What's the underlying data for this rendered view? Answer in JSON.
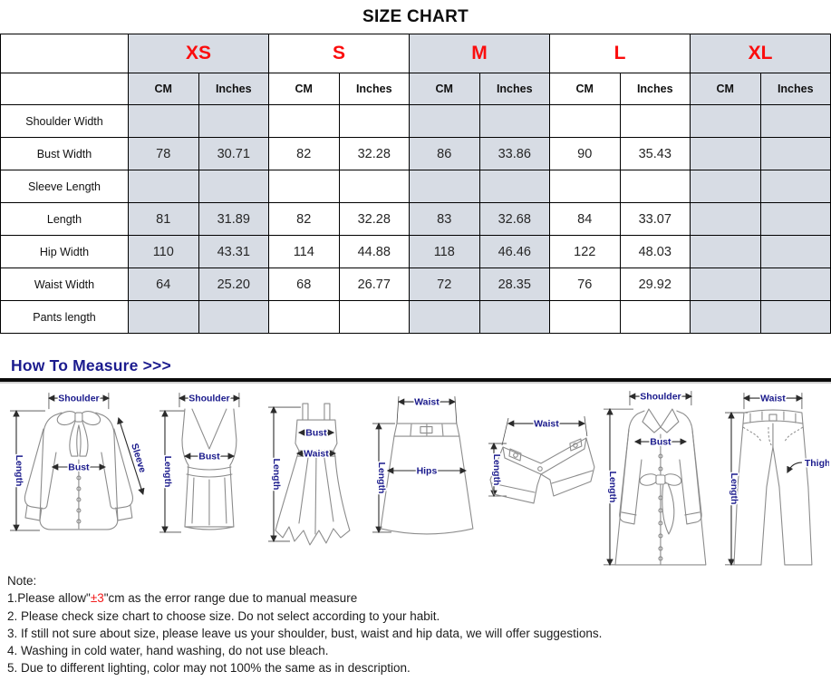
{
  "title": "SIZE CHART",
  "table": {
    "sizes": [
      "XS",
      "S",
      "M",
      "L",
      "XL"
    ],
    "unit_headers": [
      "CM",
      "Inches"
    ],
    "rows": [
      {
        "label": "Shoulder Width",
        "values": [
          "",
          "",
          "",
          "",
          "",
          "",
          "",
          "",
          "",
          ""
        ]
      },
      {
        "label": "Bust Width",
        "values": [
          "78",
          "30.71",
          "82",
          "32.28",
          "86",
          "33.86",
          "90",
          "35.43",
          "",
          ""
        ]
      },
      {
        "label": "Sleeve Length",
        "values": [
          "",
          "",
          "",
          "",
          "",
          "",
          "",
          "",
          "",
          ""
        ]
      },
      {
        "label": "Length",
        "values": [
          "81",
          "31.89",
          "82",
          "32.28",
          "83",
          "32.68",
          "84",
          "33.07",
          "",
          ""
        ]
      },
      {
        "label": "Hip Width",
        "values": [
          "110",
          "43.31",
          "114",
          "44.88",
          "118",
          "46.46",
          "122",
          "48.03",
          "",
          ""
        ]
      },
      {
        "label": "Waist Width",
        "values": [
          "64",
          "25.20",
          "68",
          "26.77",
          "72",
          "28.35",
          "76",
          "29.92",
          "",
          ""
        ]
      },
      {
        "label": "Pants length",
        "values": [
          "",
          "",
          "",
          "",
          "",
          "",
          "",
          "",
          "",
          ""
        ]
      }
    ]
  },
  "measure": {
    "heading": "How To Measure >>>",
    "diagrams": [
      {
        "name": "blouse",
        "labels": {
          "shoulder": "Shoulder",
          "length": "Length",
          "bust": "Bust",
          "sleeve": "Sleeve"
        }
      },
      {
        "name": "tank-top",
        "labels": {
          "shoulder": "Shoulder",
          "length": "Length",
          "bust": "Bust"
        }
      },
      {
        "name": "dress",
        "labels": {
          "length": "Length",
          "bust": "Bust",
          "waist": "Waist"
        }
      },
      {
        "name": "skirt",
        "labels": {
          "waist": "Waist",
          "length": "Length",
          "hips": "Hips"
        }
      },
      {
        "name": "shorts",
        "labels": {
          "waist": "Waist",
          "length": "Length"
        }
      },
      {
        "name": "coat",
        "labels": {
          "shoulder": "Shoulder",
          "length": "Length",
          "bust": "Bust"
        }
      },
      {
        "name": "pants",
        "labels": {
          "waist": "Waist",
          "length": "Length",
          "thigh": "Thigh"
        }
      }
    ]
  },
  "notes": {
    "heading": "Note:",
    "note1_prefix": "1.Please allow\"",
    "note1_red": "±3",
    "note1_suffix": "\"cm as the error range due to manual measure",
    "note2": "2. Please check size chart to choose size. Do not select according to your habit.",
    "note3": "3. If still not sure about size, please leave us your shoulder, bust, waist and hip data, we will offer suggestions.",
    "note4": "4. Washing in cold water, hand washing, do not use bleach.",
    "note5": "5. Due to different lighting, color may not 100% the same as in description."
  },
  "colors": {
    "size_red": "#fb0d0d",
    "navy": "#1a1a8c",
    "header_shade": "#d7dce4",
    "border": "#000000"
  }
}
